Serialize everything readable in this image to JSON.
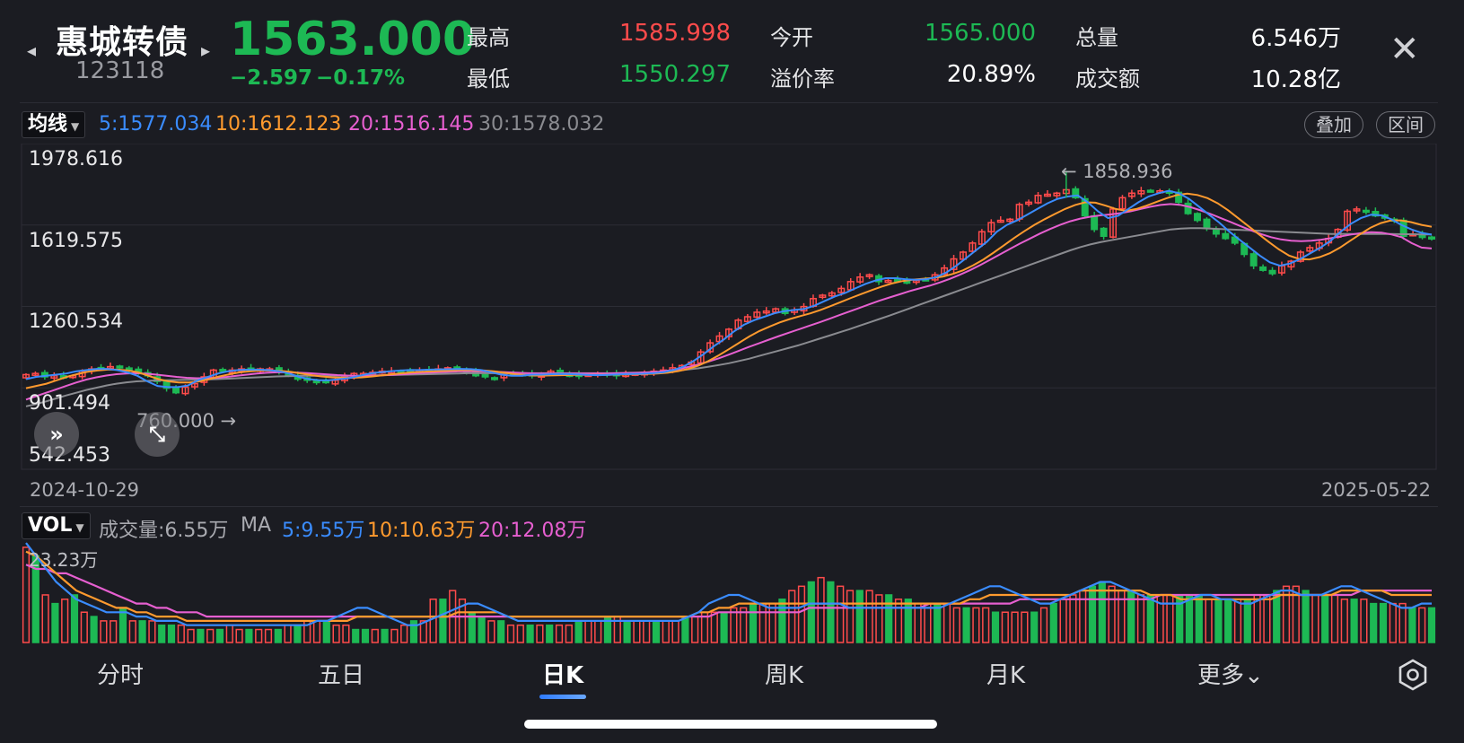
{
  "header": {
    "name": "惠城转债",
    "code": "123118",
    "price": "1563.000",
    "change": "−2.597",
    "change_pct": "−0.17%",
    "stats": [
      {
        "label": "最高",
        "value": "1585.998",
        "color": "#ff4b4b"
      },
      {
        "label": "最低",
        "value": "1550.297",
        "color": "#1db954"
      },
      {
        "label": "今开",
        "value": "1565.000",
        "color": "#1db954"
      },
      {
        "label": "溢价率",
        "value": "20.89%",
        "color": "#ffffff"
      },
      {
        "label": "总量",
        "value": "6.546万",
        "color": "#ffffff"
      },
      {
        "label": "成交额",
        "value": "10.28亿",
        "color": "#ffffff"
      }
    ]
  },
  "ma_bar": {
    "selector": "均线",
    "ma5": "5:1577.034",
    "ma10": "10:1612.123",
    "ma20": "20:1516.145",
    "ma30": "30:1578.032",
    "btn_overlay": "叠加",
    "btn_range": "区间"
  },
  "colors": {
    "up": "#ff4b4b",
    "down": "#1db954",
    "ma5": "#3a8cff",
    "ma10": "#ff9a2e",
    "ma20": "#e65fd0",
    "ma30": "#8a8b90"
  },
  "chart_data": {
    "type": "candlestick",
    "y_axis_labels": [
      "1978.616",
      "1619.575",
      "1260.534",
      "901.494",
      "542.453"
    ],
    "ylim": [
      542.453,
      1978.616
    ],
    "start_date": "2024-10-29",
    "end_date": "2025-05-22",
    "annotation_high": "← 1858.936",
    "annotation_low": "760.000 →",
    "high_value": 1858.936,
    "low_value": 760.0,
    "close_path": [
      960,
      965,
      950,
      955,
      945,
      955,
      975,
      985,
      990,
      995,
      995,
      985,
      965,
      955,
      930,
      900,
      880,
      905,
      920,
      950,
      980,
      975,
      980,
      985,
      980,
      985,
      985,
      975,
      955,
      940,
      935,
      930,
      925,
      935,
      950,
      965,
      965,
      970,
      975,
      975,
      975,
      980,
      980,
      980,
      985,
      990,
      985,
      975,
      955,
      950,
      945,
      960,
      965,
      960,
      955,
      965,
      975,
      965,
      960,
      955,
      960,
      965,
      960,
      955,
      960,
      965,
      970,
      975,
      980,
      990,
      1000,
      1015,
      1060,
      1100,
      1130,
      1160,
      1200,
      1215,
      1235,
      1240,
      1250,
      1230,
      1245,
      1260,
      1295,
      1310,
      1320,
      1340,
      1370,
      1390,
      1400,
      1370,
      1375,
      1375,
      1370,
      1375,
      1380,
      1400,
      1430,
      1470,
      1500,
      1540,
      1590,
      1630,
      1640,
      1645,
      1710,
      1720,
      1750,
      1755,
      1760,
      1775,
      1740,
      1660,
      1600,
      1570,
      1690,
      1740,
      1760,
      1770,
      1772,
      1770,
      1760,
      1720,
      1670,
      1640,
      1605,
      1580,
      1560,
      1540,
      1490,
      1440,
      1420,
      1405,
      1440,
      1460,
      1500,
      1520,
      1540,
      1560,
      1600,
      1680,
      1690,
      1680,
      1660,
      1650,
      1640,
      1570,
      1580,
      1565,
      1563
    ],
    "ma_lines": {
      "ma5": [
        940,
        950,
        955,
        960,
        965,
        975,
        980,
        985,
        985,
        980,
        970,
        955,
        930,
        910,
        905,
        905,
        912,
        935,
        950,
        965,
        975,
        980,
        982,
        982,
        980,
        975,
        965,
        950,
        940,
        935,
        935,
        940,
        945,
        955,
        965,
        970,
        975,
        978,
        980,
        980,
        982,
        983,
        984,
        985,
        984,
        980,
        970,
        960,
        955,
        955,
        960,
        960,
        962,
        963,
        962,
        960,
        958,
        958,
        960,
        962,
        963,
        964,
        966,
        970,
        980,
        995,
        1020,
        1050,
        1085,
        1115,
        1150,
        1180,
        1200,
        1215,
        1230,
        1240,
        1245,
        1250,
        1265,
        1285,
        1305,
        1320,
        1340,
        1360,
        1375,
        1385,
        1385,
        1380,
        1378,
        1380,
        1390,
        1410,
        1440,
        1475,
        1510,
        1545,
        1590,
        1620,
        1640,
        1665,
        1690,
        1715,
        1735,
        1745,
        1750,
        1720,
        1680,
        1650,
        1660,
        1690,
        1720,
        1745,
        1760,
        1770,
        1760,
        1735,
        1700,
        1665,
        1630,
        1590,
        1555,
        1520,
        1485,
        1455,
        1440,
        1450,
        1470,
        1495,
        1520,
        1550,
        1590,
        1625,
        1650,
        1665,
        1662,
        1645,
        1620,
        1600,
        1585,
        1577
      ],
      "ma10": [
        900,
        910,
        920,
        935,
        950,
        962,
        972,
        978,
        982,
        982,
        978,
        970,
        955,
        940,
        930,
        925,
        925,
        930,
        940,
        952,
        962,
        970,
        975,
        978,
        978,
        976,
        972,
        965,
        958,
        952,
        948,
        946,
        946,
        948,
        952,
        957,
        962,
        966,
        970,
        973,
        975,
        977,
        979,
        980,
        980,
        978,
        974,
        968,
        962,
        958,
        956,
        956,
        957,
        958,
        959,
        959,
        959,
        959,
        960,
        961,
        962,
        963,
        965,
        968,
        975,
        985,
        1000,
        1020,
        1045,
        1072,
        1100,
        1128,
        1152,
        1172,
        1190,
        1205,
        1218,
        1230,
        1245,
        1262,
        1280,
        1298,
        1315,
        1332,
        1348,
        1362,
        1372,
        1378,
        1382,
        1386,
        1392,
        1404,
        1420,
        1442,
        1468,
        1498,
        1530,
        1562,
        1592,
        1620,
        1645,
        1668,
        1690,
        1708,
        1720,
        1718,
        1705,
        1690,
        1682,
        1690,
        1705,
        1722,
        1738,
        1752,
        1758,
        1752,
        1738,
        1715,
        1685,
        1650,
        1615,
        1580,
        1545,
        1512,
        1485,
        1470,
        1468,
        1478,
        1495,
        1520,
        1550,
        1580,
        1608,
        1628,
        1640,
        1640,
        1632,
        1620,
        1612
      ],
      "ma20": [
        850,
        865,
        880,
        895,
        910,
        925,
        938,
        948,
        956,
        962,
        965,
        966,
        964,
        960,
        955,
        950,
        946,
        944,
        944,
        946,
        950,
        955,
        960,
        965,
        968,
        970,
        970,
        969,
        967,
        964,
        961,
        958,
        956,
        955,
        955,
        956,
        958,
        960,
        963,
        966,
        968,
        970,
        972,
        974,
        975,
        975,
        974,
        972,
        970,
        968,
        966,
        965,
        965,
        965,
        965,
        965,
        965,
        965,
        965,
        966,
        967,
        968,
        970,
        973,
        978,
        985,
        994,
        1005,
        1018,
        1032,
        1048,
        1065,
        1082,
        1098,
        1114,
        1130,
        1145,
        1160,
        1175,
        1190,
        1206,
        1222,
        1238,
        1254,
        1270,
        1286,
        1300,
        1314,
        1328,
        1340,
        1352,
        1366,
        1382,
        1400,
        1420,
        1442,
        1466,
        1490,
        1514,
        1538,
        1560,
        1582,
        1602,
        1620,
        1636,
        1648,
        1656,
        1662,
        1666,
        1672,
        1680,
        1690,
        1700,
        1708,
        1712,
        1708,
        1698,
        1684,
        1668,
        1650,
        1632,
        1614,
        1596,
        1580,
        1566,
        1556,
        1550,
        1548,
        1550,
        1555,
        1562,
        1570,
        1578,
        1584,
        1588,
        1586,
        1578,
        1566,
        1540,
        1520,
        1516
      ],
      "ma30": [
        820,
        830,
        842,
        855,
        868,
        880,
        892,
        902,
        912,
        920,
        926,
        930,
        932,
        934,
        935,
        936,
        937,
        938,
        939,
        940,
        942,
        944,
        946,
        948,
        950,
        952,
        953,
        954,
        955,
        955,
        955,
        955,
        955,
        955,
        956,
        957,
        958,
        959,
        960,
        961,
        962,
        963,
        964,
        965,
        966,
        966,
        966,
        966,
        966,
        966,
        966,
        966,
        966,
        966,
        966,
        966,
        966,
        966,
        966,
        967,
        968,
        969,
        970,
        972,
        975,
        978,
        983,
        988,
        995,
        1002,
        1010,
        1020,
        1030,
        1042,
        1054,
        1066,
        1078,
        1090,
        1104,
        1118,
        1132,
        1146,
        1160,
        1175,
        1190,
        1205,
        1220,
        1236,
        1252,
        1268,
        1284,
        1300,
        1316,
        1332,
        1348,
        1364,
        1380,
        1396,
        1412,
        1428,
        1444,
        1460,
        1476,
        1492,
        1508,
        1522,
        1534,
        1544,
        1552,
        1560,
        1568,
        1576,
        1584,
        1592,
        1600,
        1604,
        1606,
        1606,
        1604,
        1602,
        1600,
        1598,
        1596,
        1594,
        1592,
        1590,
        1588,
        1586,
        1584,
        1582,
        1580,
        1580,
        1580,
        1580,
        1580,
        1580,
        1580,
        1579,
        1579,
        1578,
        1578
      ]
    }
  },
  "vol_bar": {
    "selector": "VOL",
    "total": "成交量:6.55万",
    "ma_label": "MA",
    "ma5": "5:9.55万",
    "ma10": "10:10.63万",
    "ma20": "20:12.08万",
    "max_label": "23.23万"
  },
  "vol_data": {
    "max": 23.23,
    "values": [
      22,
      20,
      11,
      9,
      10,
      11,
      7,
      6,
      5,
      5,
      8,
      5,
      5,
      5,
      4,
      4,
      4,
      3,
      3,
      3,
      3,
      4,
      3,
      3,
      3,
      3,
      3,
      4,
      4,
      5,
      5,
      5,
      4,
      4,
      3,
      3,
      3,
      3,
      3,
      4,
      5,
      5,
      10,
      10,
      12,
      10,
      7,
      6,
      5,
      5,
      4,
      4,
      4,
      4,
      4,
      4,
      4,
      5,
      5,
      5,
      6,
      6,
      5,
      5,
      5,
      5,
      5,
      5,
      6,
      6,
      7,
      7,
      7,
      8,
      8,
      9,
      9,
      9,
      10,
      12,
      13,
      14,
      15,
      14,
      13,
      12,
      12,
      12,
      11,
      11,
      10,
      10,
      9,
      9,
      9,
      9,
      8,
      8,
      8,
      8,
      7,
      7,
      7,
      7,
      7,
      8,
      9,
      10,
      11,
      12,
      13,
      14,
      13,
      12,
      12,
      11,
      11,
      11,
      11,
      11,
      11,
      11,
      10,
      10,
      10,
      10,
      10,
      11,
      11,
      12,
      13,
      13,
      12,
      11,
      11,
      11,
      10,
      10,
      10,
      9,
      9,
      9,
      9,
      8,
      8,
      8
    ],
    "up": [
      1,
      0,
      1,
      0,
      1,
      0,
      1,
      0,
      1,
      1,
      0,
      1,
      0,
      1,
      0,
      0,
      1,
      1,
      0,
      1,
      0,
      1,
      1,
      0,
      1,
      1,
      0,
      1,
      0,
      1,
      1,
      0,
      1,
      1,
      0,
      0,
      1,
      0,
      1,
      1,
      0,
      1,
      1,
      0,
      1,
      1,
      0,
      0,
      1,
      0,
      1,
      1,
      0,
      1,
      0,
      1,
      1,
      0,
      1,
      1,
      0,
      1,
      0,
      1,
      1,
      0,
      1,
      1,
      0,
      1,
      1,
      1,
      0,
      1,
      1,
      0,
      1,
      1,
      0,
      1,
      1,
      0,
      1,
      0,
      1,
      1,
      0,
      1,
      1,
      0,
      1,
      0,
      1,
      1,
      0,
      1,
      1,
      0,
      1,
      1,
      0,
      1,
      1,
      1,
      0,
      1,
      0,
      1,
      1,
      1,
      0,
      0,
      1,
      1,
      0,
      1,
      0,
      1,
      1,
      0,
      0,
      0,
      1,
      0,
      0,
      1,
      0,
      1,
      1,
      0,
      1,
      1,
      0,
      1,
      0,
      1,
      1,
      0,
      1,
      0,
      0,
      1,
      1,
      0,
      1,
      0,
      0
    ],
    "ma5": [
      23,
      20,
      17,
      14,
      12,
      10,
      9,
      8,
      7,
      7,
      7,
      6,
      6,
      5,
      5,
      5,
      4,
      4,
      4,
      4,
      4,
      4,
      4,
      4,
      4,
      4,
      4,
      4,
      4,
      5,
      5,
      6,
      7,
      8,
      8,
      7,
      6,
      5,
      4,
      4,
      5,
      6,
      7,
      8,
      9,
      9,
      8,
      7,
      6,
      5,
      5,
      5,
      5,
      5,
      5,
      5,
      5,
      5,
      5,
      5,
      5,
      5,
      5,
      5,
      5,
      5,
      6,
      7,
      9,
      10,
      11,
      11,
      10,
      9,
      8,
      8,
      8,
      8,
      9,
      9,
      9,
      9,
      8,
      8,
      8,
      8,
      8,
      8,
      8,
      8,
      8,
      8,
      9,
      10,
      11,
      12,
      13,
      13,
      12,
      11,
      10,
      9,
      9,
      10,
      11,
      12,
      13,
      14,
      14,
      13,
      12,
      11,
      10,
      9,
      9,
      9,
      10,
      11,
      11,
      10,
      10,
      9,
      9,
      10,
      11,
      12,
      12,
      11,
      11,
      11,
      12,
      13,
      13,
      12,
      11,
      10,
      9,
      8,
      8,
      9,
      9
    ],
    "ma10": [
      21,
      20,
      18,
      16,
      14,
      12,
      11,
      10,
      9,
      8,
      8,
      7,
      7,
      6,
      6,
      6,
      5,
      5,
      5,
      5,
      5,
      5,
      5,
      5,
      5,
      5,
      5,
      5,
      5,
      5,
      5,
      5,
      5,
      6,
      6,
      6,
      6,
      6,
      6,
      6,
      6,
      6,
      6,
      7,
      7,
      7,
      7,
      7,
      6,
      6,
      6,
      6,
      6,
      6,
      6,
      6,
      6,
      6,
      6,
      6,
      6,
      6,
      6,
      6,
      6,
      6,
      6,
      7,
      7,
      8,
      8,
      9,
      9,
      9,
      9,
      9,
      9,
      9,
      9,
      9,
      9,
      9,
      9,
      9,
      9,
      9,
      9,
      9,
      9,
      9,
      9,
      9,
      9,
      9,
      10,
      10,
      11,
      11,
      11,
      11,
      11,
      11,
      11,
      11,
      11,
      12,
      12,
      12,
      12,
      12,
      12,
      12,
      11,
      11,
      11,
      10,
      10,
      10,
      10,
      10,
      10,
      10,
      10,
      10,
      10,
      11,
      11,
      11,
      11,
      11,
      11,
      12,
      12,
      12,
      12,
      12,
      11,
      11,
      11,
      11,
      11
    ],
    "ma20": [
      18,
      17,
      17,
      16,
      16,
      15,
      14,
      13,
      12,
      11,
      10,
      9,
      9,
      8,
      8,
      7,
      7,
      7,
      6,
      6,
      6,
      6,
      6,
      6,
      6,
      6,
      6,
      6,
      6,
      6,
      6,
      6,
      6,
      6,
      6,
      6,
      6,
      6,
      6,
      6,
      6,
      6,
      6,
      6,
      6,
      6,
      6,
      6,
      6,
      6,
      6,
      6,
      6,
      6,
      6,
      6,
      6,
      6,
      6,
      6,
      6,
      6,
      6,
      6,
      6,
      6,
      6,
      6,
      6,
      7,
      7,
      7,
      7,
      7,
      7,
      7,
      7,
      7,
      8,
      8,
      8,
      8,
      8,
      8,
      8,
      8,
      8,
      8,
      8,
      8,
      9,
      9,
      9,
      9,
      9,
      9,
      9,
      9,
      9,
      10,
      10,
      10,
      10,
      10,
      10,
      10,
      10,
      10,
      10,
      10,
      10,
      10,
      10,
      11,
      11,
      11,
      11,
      11,
      11,
      11,
      11,
      11,
      11,
      11,
      11,
      11,
      11,
      11,
      11,
      11,
      11,
      11,
      11,
      12,
      12,
      12,
      12,
      12,
      12,
      12,
      12
    ]
  },
  "tabs": [
    {
      "label": "分时",
      "active": false
    },
    {
      "label": "五日",
      "active": false
    },
    {
      "label": "日K",
      "active": true
    },
    {
      "label": "周K",
      "active": false
    },
    {
      "label": "月K",
      "active": false
    },
    {
      "label": "更多⌄",
      "active": false
    }
  ]
}
